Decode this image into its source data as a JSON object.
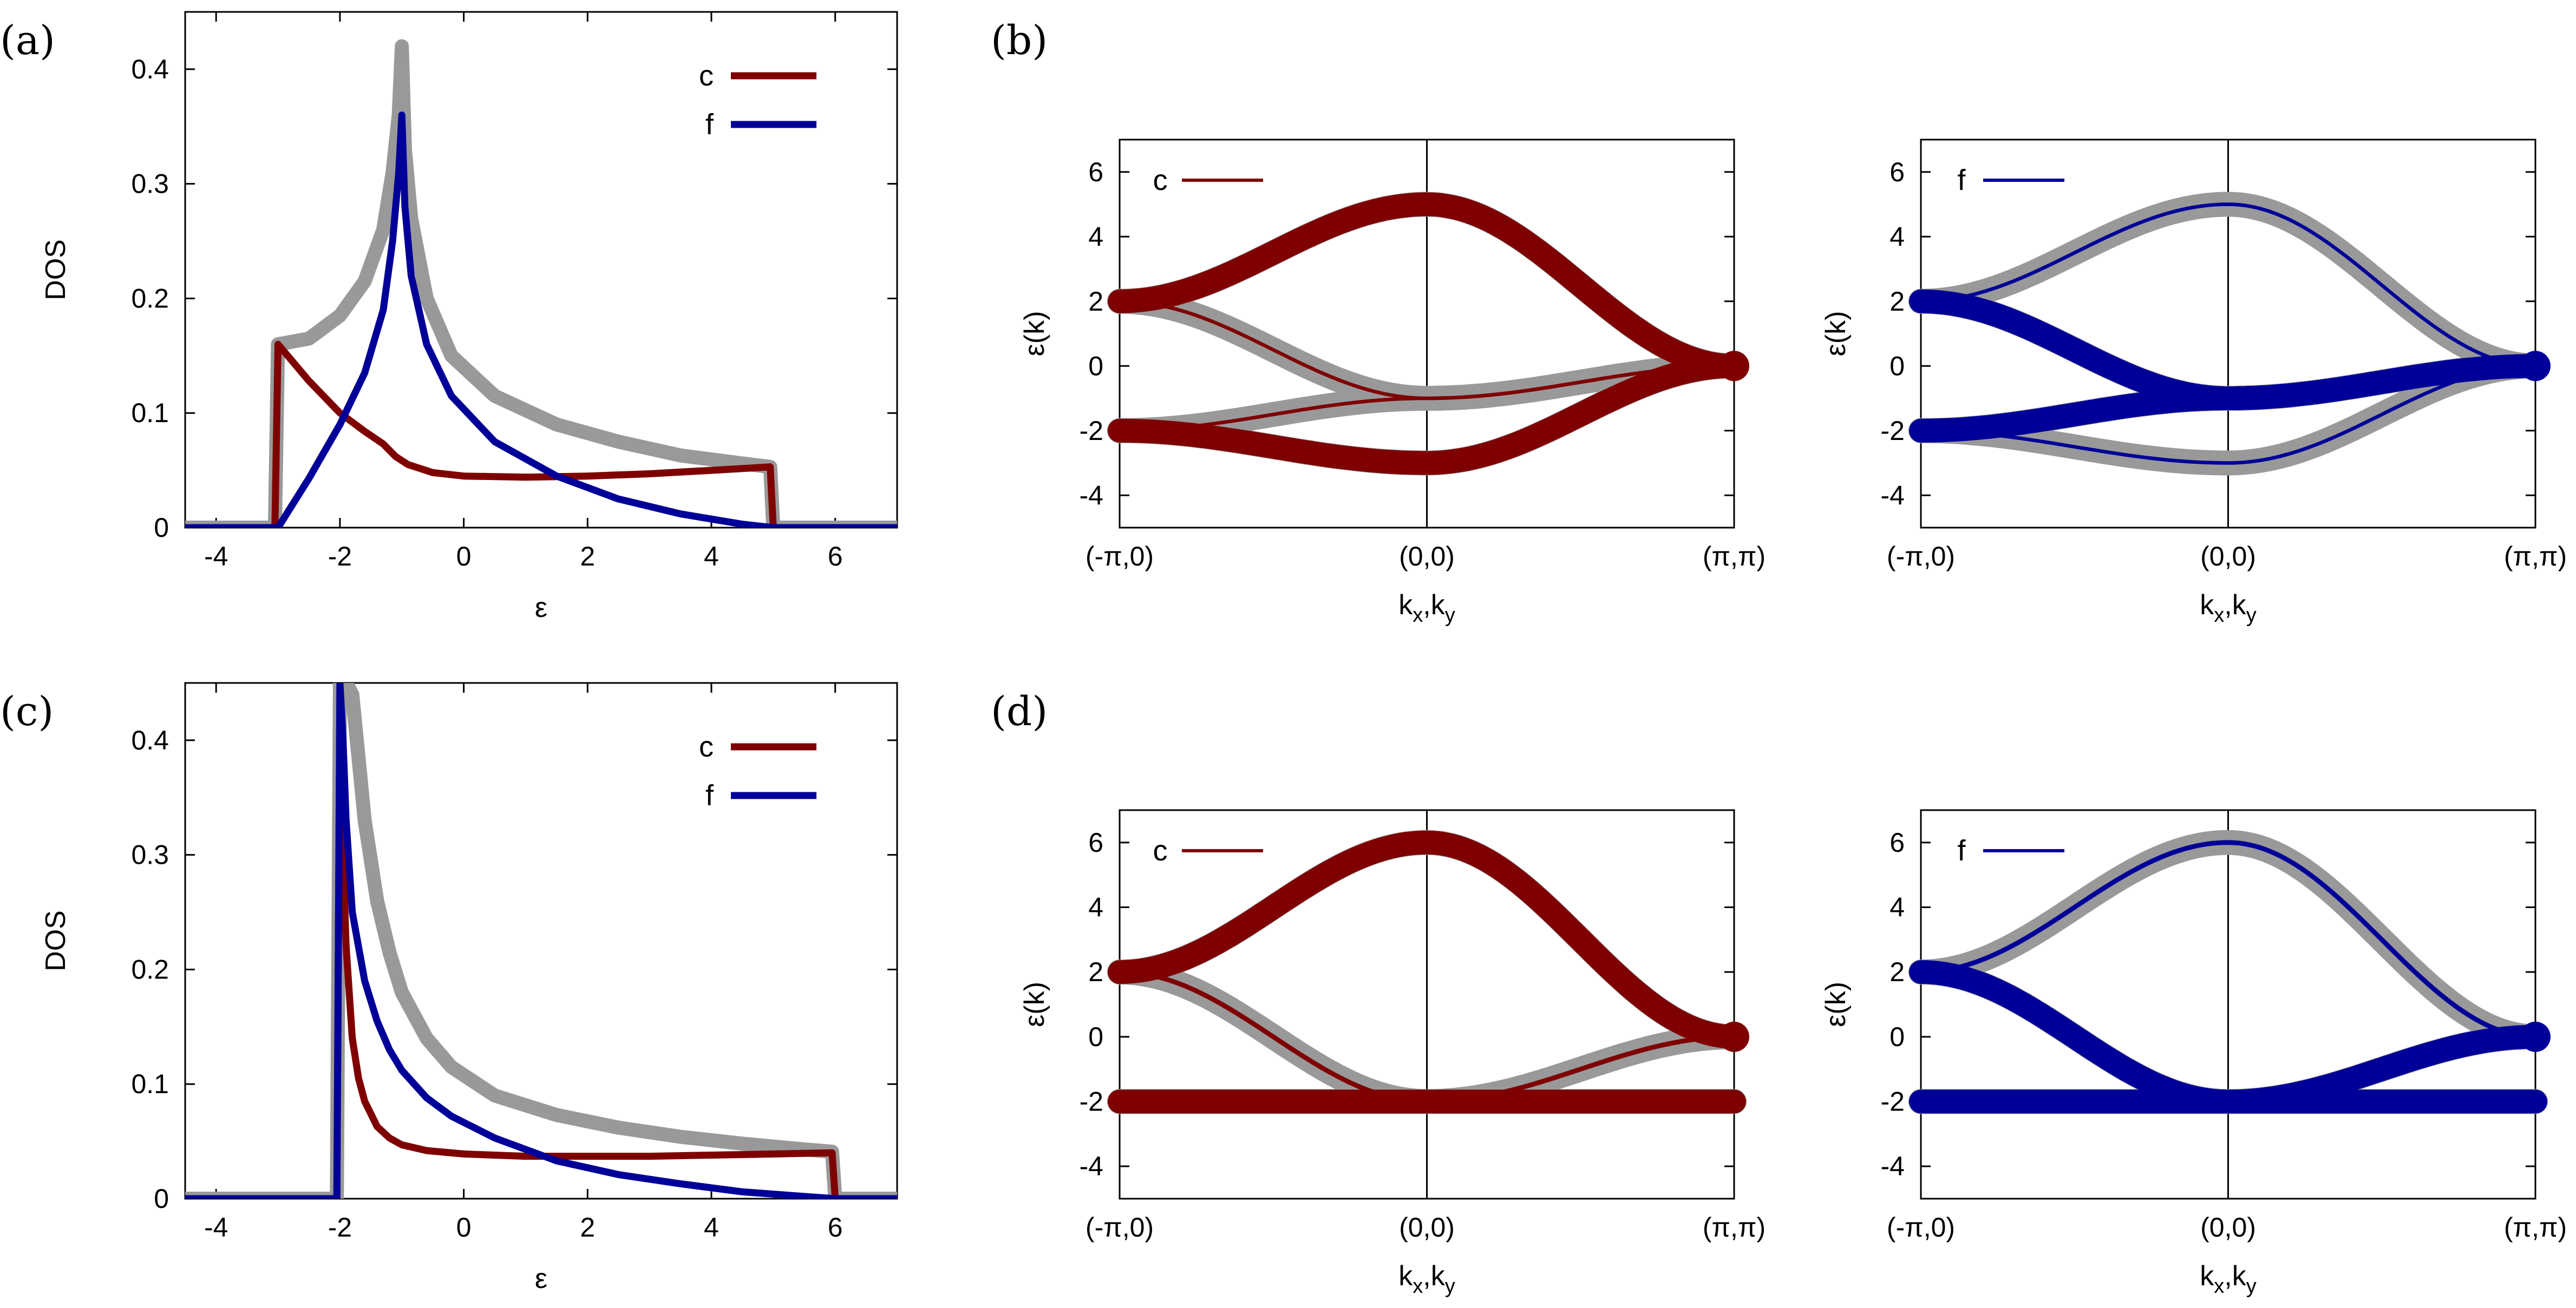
{
  "colors": {
    "c": "#7f0000",
    "f": "#000099",
    "total": "#999999"
  },
  "chart_data": [
    {
      "id": "a",
      "panel_label": "(a)",
      "type": "line",
      "xlabel": "ε",
      "ylabel": "DOS",
      "xlim": [
        -4.5,
        7
      ],
      "ylim": [
        0,
        0.45
      ],
      "xticks": [
        "-4",
        "-2",
        "0",
        "2",
        "4",
        "6"
      ],
      "yticks": [
        "0",
        "0.1",
        "0.2",
        "0.3",
        "0.4"
      ],
      "legend": [
        "c",
        "f"
      ],
      "series": [
        {
          "name": "total",
          "x": [
            -4.5,
            -3.05,
            -3.0,
            -2.5,
            -2.0,
            -1.6,
            -1.3,
            -1.15,
            -1.05,
            -1.0,
            -0.95,
            -0.85,
            -0.6,
            -0.2,
            0.5,
            1.5,
            2.5,
            3.5,
            4.5,
            4.95,
            5.0,
            7.0
          ],
          "y": [
            0,
            0,
            0.16,
            0.165,
            0.185,
            0.215,
            0.26,
            0.31,
            0.36,
            0.42,
            0.33,
            0.27,
            0.2,
            0.15,
            0.115,
            0.09,
            0.075,
            0.063,
            0.056,
            0.053,
            0,
            0
          ]
        },
        {
          "name": "c",
          "x": [
            -4.5,
            -3.05,
            -3.0,
            -2.5,
            -2.0,
            -1.6,
            -1.3,
            -1.1,
            -0.9,
            -0.5,
            0.0,
            1.0,
            2.0,
            3.0,
            4.0,
            4.95,
            5.0,
            7.0
          ],
          "y": [
            0,
            0,
            0.16,
            0.128,
            0.1,
            0.084,
            0.073,
            0.062,
            0.055,
            0.048,
            0.045,
            0.044,
            0.045,
            0.047,
            0.05,
            0.053,
            0,
            0
          ]
        },
        {
          "name": "f",
          "x": [
            -4.5,
            -3.0,
            -2.5,
            -2.0,
            -1.6,
            -1.3,
            -1.15,
            -1.05,
            -1.0,
            -0.95,
            -0.85,
            -0.6,
            -0.2,
            0.5,
            1.5,
            2.5,
            3.5,
            4.5,
            5.0,
            7.0
          ],
          "y": [
            0,
            0,
            0.043,
            0.09,
            0.135,
            0.19,
            0.25,
            0.31,
            0.36,
            0.28,
            0.22,
            0.16,
            0.115,
            0.075,
            0.045,
            0.025,
            0.012,
            0.003,
            0,
            0
          ]
        }
      ]
    },
    {
      "id": "c",
      "panel_label": "(c)",
      "type": "line",
      "xlabel": "ε",
      "ylabel": "DOS",
      "xlim": [
        -4.5,
        7
      ],
      "ylim": [
        0,
        0.45
      ],
      "xticks": [
        "-4",
        "-2",
        "0",
        "2",
        "4",
        "6"
      ],
      "yticks": [
        "0",
        "0.1",
        "0.2",
        "0.3",
        "0.4"
      ],
      "legend": [
        "c",
        "f"
      ],
      "series": [
        {
          "name": "total",
          "x": [
            -4.5,
            -2.05,
            -2.0,
            -1.9,
            -1.8,
            -1.6,
            -1.4,
            -1.2,
            -1.0,
            -0.6,
            -0.2,
            0.5,
            1.5,
            2.5,
            3.5,
            4.5,
            5.5,
            5.95,
            6.0,
            7.0
          ],
          "y": [
            0,
            0,
            0.45,
            0.45,
            0.44,
            0.33,
            0.26,
            0.215,
            0.18,
            0.14,
            0.115,
            0.09,
            0.073,
            0.062,
            0.054,
            0.048,
            0.043,
            0.041,
            0,
            0
          ]
        },
        {
          "name": "c",
          "x": [
            -4.5,
            -2.05,
            -2.0,
            -1.95,
            -1.9,
            -1.8,
            -1.7,
            -1.6,
            -1.4,
            -1.2,
            -1.0,
            -0.6,
            0.0,
            1.0,
            2.0,
            3.0,
            4.0,
            5.0,
            5.95,
            6.0,
            7.0
          ],
          "y": [
            0,
            0,
            0.45,
            0.3,
            0.22,
            0.14,
            0.105,
            0.085,
            0.063,
            0.053,
            0.047,
            0.042,
            0.039,
            0.037,
            0.037,
            0.037,
            0.038,
            0.039,
            0.04,
            0,
            0
          ]
        },
        {
          "name": "f",
          "x": [
            -4.5,
            -2.05,
            -2.0,
            -1.95,
            -1.9,
            -1.8,
            -1.6,
            -1.4,
            -1.2,
            -1.0,
            -0.6,
            -0.2,
            0.5,
            1.5,
            2.5,
            3.5,
            4.5,
            5.5,
            6.0,
            7.0
          ],
          "y": [
            0,
            0,
            0.45,
            0.4,
            0.33,
            0.25,
            0.19,
            0.155,
            0.13,
            0.112,
            0.088,
            0.072,
            0.053,
            0.033,
            0.021,
            0.013,
            0.006,
            0.002,
            0,
            0
          ]
        }
      ]
    },
    {
      "id": "b-c",
      "panel_label": "(b)",
      "type": "line",
      "xlabel": "kx,ky",
      "ylabel": "ε(k)",
      "xlim": [
        0,
        2
      ],
      "ylim": [
        -5,
        7
      ],
      "xticks": [
        "(-π,0)",
        "(0,0)",
        "(π,π)"
      ],
      "yticks": [
        "-4",
        "-2",
        "0",
        "2",
        "4",
        "6"
      ],
      "legend": [
        "c"
      ],
      "bands": {
        "top": [
          2,
          5,
          0
        ],
        "mid": [
          2,
          -1,
          0
        ],
        "low": [
          -2,
          -1,
          0
        ],
        "bottom": [
          -2,
          -3,
          0
        ]
      },
      "band_weights_c": {
        "top": 1.0,
        "mid": 0.15,
        "low": 0.15,
        "bottom": 1.0
      }
    },
    {
      "id": "b-f",
      "panel_label": "",
      "type": "line",
      "xlabel": "kx,ky",
      "ylabel": "ε(k)",
      "xlim": [
        0,
        2
      ],
      "ylim": [
        -5,
        7
      ],
      "xticks": [
        "(-π,0)",
        "(0,0)",
        "(π,π)"
      ],
      "yticks": [
        "-4",
        "-2",
        "0",
        "2",
        "4",
        "6"
      ],
      "legend": [
        "f"
      ],
      "bands": {
        "top": [
          2,
          5,
          0
        ],
        "mid": [
          2,
          -1,
          0
        ],
        "low": [
          -2,
          -1,
          0
        ],
        "bottom": [
          -2,
          -3,
          0
        ]
      },
      "band_weights_f": {
        "top": 0.15,
        "mid": 1.0,
        "low": 1.0,
        "bottom": 0.15
      }
    },
    {
      "id": "d-c",
      "panel_label": "(d)",
      "type": "line",
      "xlabel": "kx,ky",
      "ylabel": "ε(k)",
      "xlim": [
        0,
        2
      ],
      "ylim": [
        -5,
        7
      ],
      "xticks": [
        "(-π,0)",
        "(0,0)",
        "(π,π)"
      ],
      "yticks": [
        "-4",
        "-2",
        "0",
        "2",
        "4",
        "6"
      ],
      "legend": [
        "c"
      ],
      "bands": {
        "top": [
          2,
          6,
          0
        ],
        "mid": [
          2,
          -2,
          0
        ],
        "flat": [
          -2,
          -2,
          -2
        ]
      },
      "band_weights_c": {
        "top": 1.0,
        "mid": 0.2,
        "flat": 1.0
      }
    },
    {
      "id": "d-f",
      "panel_label": "",
      "type": "line",
      "xlabel": "kx,ky",
      "ylabel": "ε(k)",
      "xlim": [
        0,
        2
      ],
      "ylim": [
        -5,
        7
      ],
      "xticks": [
        "(-π,0)",
        "(0,0)",
        "(π,π)"
      ],
      "yticks": [
        "-4",
        "-2",
        "0",
        "2",
        "4",
        "6"
      ],
      "legend": [
        "f"
      ],
      "bands": {
        "top": [
          2,
          6,
          0
        ],
        "mid": [
          2,
          -2,
          0
        ],
        "flat": [
          -2,
          -2,
          -2
        ]
      },
      "band_weights_f": {
        "top": 0.2,
        "mid": 1.0,
        "flat": 1.0
      }
    }
  ]
}
